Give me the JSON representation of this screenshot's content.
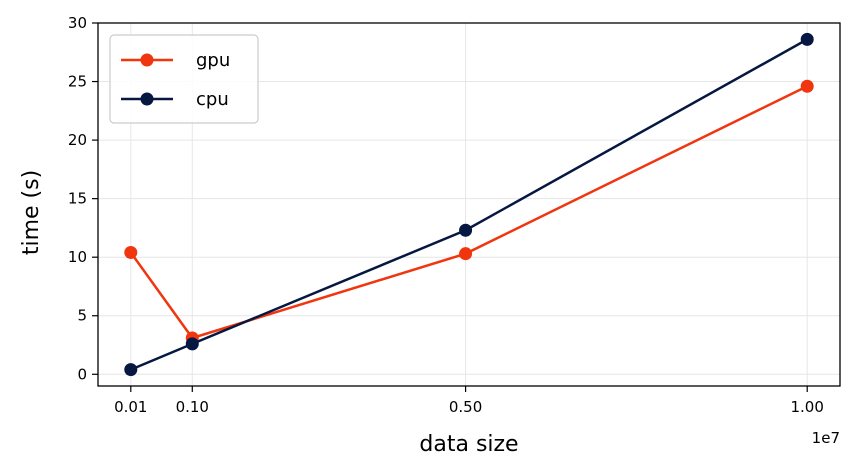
{
  "chart_data": {
    "type": "line",
    "x": [
      0.01,
      0.1,
      0.5,
      1.0
    ],
    "x_tick_labels": [
      "0.01",
      "0.10",
      "0.50",
      "1.00"
    ],
    "x_offset_label": "1e7",
    "xlabel": "data size",
    "ylabel": "time (s)",
    "ylim": [
      -1,
      30
    ],
    "y_ticks": [
      0,
      5,
      10,
      15,
      20,
      25,
      30
    ],
    "xlim": [
      -0.038,
      1.048
    ],
    "grid": true,
    "legend_position": "top-left",
    "series": [
      {
        "name": "gpu",
        "color": "#f0350f",
        "values": [
          10.4,
          3.1,
          10.3,
          24.6
        ]
      },
      {
        "name": "cpu",
        "color": "#061841",
        "values": [
          0.4,
          2.6,
          12.3,
          28.6
        ]
      }
    ]
  }
}
